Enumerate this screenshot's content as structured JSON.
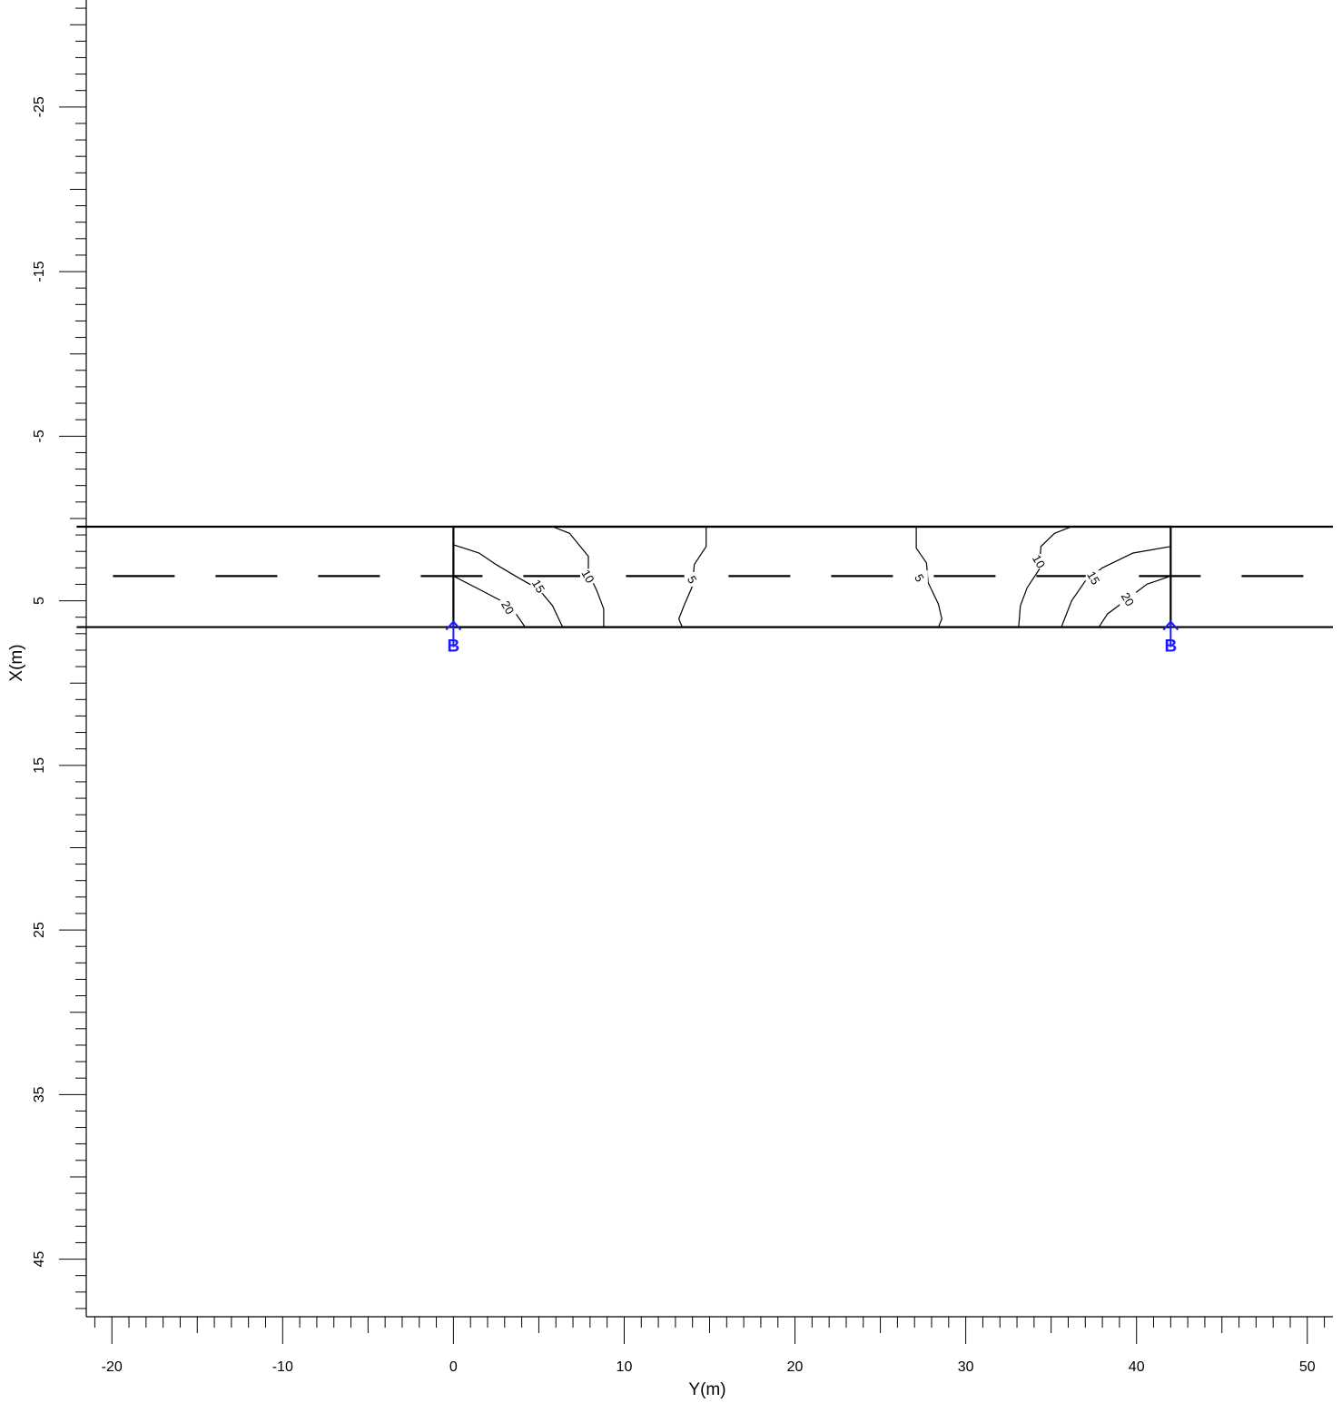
{
  "chart_data": {
    "type": "contour",
    "xlabel": "Y(m)",
    "ylabel": "X(m)",
    "xlim": [
      -21.5,
      51.5
    ],
    "ylim": [
      -31.5,
      48.5
    ],
    "y_axis_inverted": true,
    "x_tick_labels": [
      -20,
      -10,
      0,
      10,
      20,
      30,
      40,
      50
    ],
    "y_tick_labels": [
      -25,
      -15,
      -5,
      5,
      15,
      25,
      35,
      45
    ],
    "x_minor_step": 1,
    "y_minor_step": 1,
    "grid": false,
    "road": {
      "edges_x": [
        0.5,
        6.6
      ],
      "centerline_x": 3.5,
      "extent_y": [
        -21,
        51
      ]
    },
    "bridge": {
      "y_range": [
        0,
        42
      ],
      "x_range": [
        0.5,
        6.6
      ]
    },
    "supports": [
      {
        "label": "B",
        "y": 0,
        "x": 6.6
      },
      {
        "label": "B",
        "y": 42,
        "x": 6.6
      }
    ],
    "contours": [
      {
        "level": 20,
        "label": "20",
        "label_at": [
          3.2,
          5.4
        ],
        "points": [
          [
            0,
            3.5
          ],
          [
            1.5,
            4.3
          ],
          [
            2.8,
            5
          ],
          [
            3.6,
            5.7
          ],
          [
            4.2,
            6.6
          ]
        ]
      },
      {
        "level": 15,
        "label": "15",
        "label_at": [
          5,
          4.1
        ],
        "points": [
          [
            0,
            1.6
          ],
          [
            1.5,
            2.1
          ],
          [
            2.5,
            2.8
          ],
          [
            3.8,
            3.6
          ],
          [
            5,
            4.3
          ],
          [
            5.8,
            5.3
          ],
          [
            6.4,
            6.6
          ]
        ]
      },
      {
        "level": 10,
        "label": "10",
        "label_at": [
          7.9,
          3.5
        ],
        "points": [
          [
            5.8,
            0.5
          ],
          [
            6.8,
            0.9
          ],
          [
            7.9,
            2.3
          ],
          [
            7.9,
            3.3
          ],
          [
            8.4,
            4.4
          ],
          [
            8.8,
            5.5
          ],
          [
            8.8,
            6.6
          ]
        ]
      },
      {
        "level": 5,
        "label": "5",
        "label_at": [
          14,
          3.7
        ],
        "points": [
          [
            14.8,
            0.5
          ],
          [
            14.8,
            1.7
          ],
          [
            14.1,
            2.8
          ],
          [
            14,
            4.1
          ],
          [
            13.5,
            5.3
          ],
          [
            13.2,
            6.1
          ],
          [
            13.4,
            6.6
          ]
        ]
      },
      {
        "level": 5,
        "label": "5",
        "label_at": [
          27.3,
          3.6
        ],
        "points": [
          [
            27.1,
            0.5
          ],
          [
            27.1,
            1.8
          ],
          [
            27.7,
            2.7
          ],
          [
            27.8,
            3.9
          ],
          [
            28.4,
            5.2
          ],
          [
            28.6,
            6.1
          ],
          [
            28.4,
            6.6
          ]
        ]
      },
      {
        "level": 10,
        "label": "10",
        "label_at": [
          34.3,
          2.6
        ],
        "points": [
          [
            36.2,
            0.5
          ],
          [
            35.2,
            0.9
          ],
          [
            34.4,
            1.7
          ],
          [
            34.3,
            3.1
          ],
          [
            33.6,
            4.2
          ],
          [
            33.2,
            5.3
          ],
          [
            33.1,
            6.6
          ]
        ]
      },
      {
        "level": 15,
        "label": "15",
        "label_at": [
          37.5,
          3.6
        ],
        "points": [
          [
            42,
            1.7
          ],
          [
            39.8,
            2.1
          ],
          [
            38,
            3
          ],
          [
            37,
            3.8
          ],
          [
            36.2,
            5
          ],
          [
            35.6,
            6.6
          ]
        ]
      },
      {
        "level": 20,
        "label": "20",
        "label_at": [
          39.5,
          4.9
        ],
        "points": [
          [
            42,
            3.5
          ],
          [
            40.6,
            4
          ],
          [
            39.2,
            5.1
          ],
          [
            38.3,
            5.8
          ],
          [
            37.8,
            6.6
          ]
        ]
      }
    ]
  }
}
